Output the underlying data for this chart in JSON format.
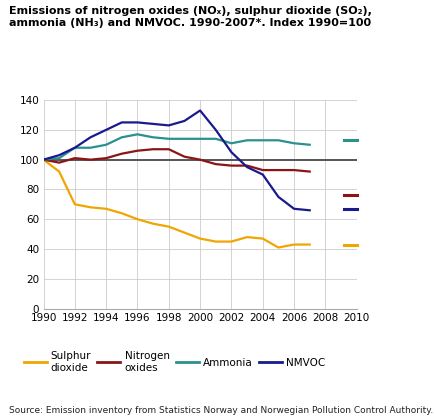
{
  "title_full": "Emissions of nitrogen oxides (NOₓ), sulphur dioxide (SO₂),\nammonia (NH₃) and NMVOC. 1990-2007*. Index 1990=100",
  "source": "Source: Emission inventory from Statistics Norway and Norwegian Pollution Control Authority.",
  "years": [
    1990,
    1991,
    1992,
    1993,
    1994,
    1995,
    1996,
    1997,
    1998,
    1999,
    2000,
    2001,
    2002,
    2003,
    2004,
    2005,
    2006,
    2007
  ],
  "sulphur_dioxide": [
    100,
    92,
    70,
    68,
    67,
    64,
    60,
    57,
    55,
    51,
    47,
    45,
    45,
    48,
    47,
    41,
    43,
    43
  ],
  "nitrogen_oxides": [
    100,
    98,
    101,
    100,
    101,
    104,
    106,
    107,
    107,
    102,
    100,
    97,
    96,
    96,
    93,
    93,
    93,
    92
  ],
  "ammonia": [
    100,
    101,
    108,
    108,
    110,
    115,
    117,
    115,
    114,
    114,
    114,
    114,
    111,
    113,
    113,
    113,
    111,
    110
  ],
  "nmvoc": [
    100,
    103,
    108,
    115,
    120,
    125,
    125,
    124,
    123,
    126,
    133,
    120,
    105,
    95,
    90,
    75,
    67,
    66
  ],
  "stubs": {
    "sulphur_dioxide": 43,
    "nitrogen_oxides": 76,
    "ammonia": 113,
    "nmvoc": 67
  },
  "stub_x_start": 2009.2,
  "stub_x_end": 2010.0,
  "colors": {
    "sulphur_dioxide": "#F0A500",
    "nitrogen_oxides": "#8B1515",
    "ammonia": "#2A9090",
    "nmvoc": "#1A1A8C",
    "reference_line": "#555555"
  },
  "ylim": [
    0,
    140
  ],
  "yticks": [
    0,
    20,
    40,
    60,
    80,
    100,
    120,
    140
  ],
  "xlim_data": 1990,
  "xlim_max": 2010,
  "xticks": [
    1990,
    1992,
    1994,
    1996,
    1998,
    2000,
    2002,
    2004,
    2006,
    2008,
    2010
  ],
  "figsize": [
    4.35,
    4.17
  ],
  "dpi": 100
}
